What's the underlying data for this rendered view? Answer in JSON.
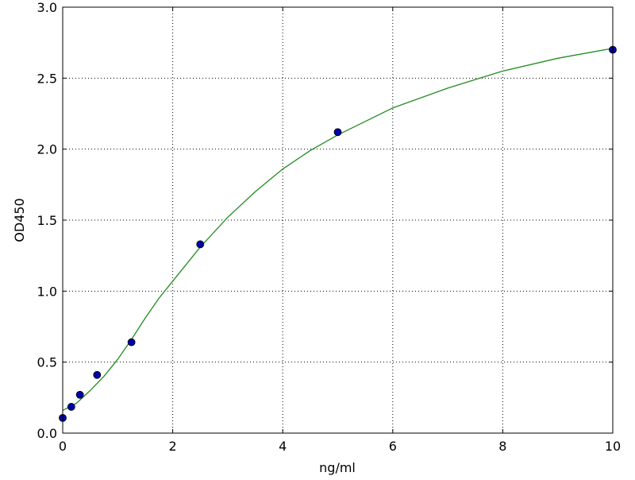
{
  "chart_data": {
    "type": "scatter",
    "title": "",
    "xlabel": "ng/ml",
    "ylabel": "OD450",
    "xlim": [
      0,
      10
    ],
    "ylim": [
      0,
      3.0
    ],
    "xticks": [
      "0",
      "2",
      "4",
      "6",
      "8",
      "10"
    ],
    "yticks": [
      "0.0",
      "0.5",
      "1.0",
      "1.5",
      "2.0",
      "2.5",
      "3.0"
    ],
    "grid": true,
    "series": [
      {
        "kind": "points",
        "color": "#0000aa",
        "x": [
          0,
          0.156,
          0.3125,
          0.625,
          1.25,
          2.5,
          5,
          10
        ],
        "y": [
          0.107,
          0.185,
          0.27,
          0.41,
          0.64,
          1.33,
          2.12,
          2.7
        ]
      },
      {
        "kind": "fit-line",
        "color": "#228b22",
        "x": [
          0,
          0.25,
          0.5,
          0.75,
          1,
          1.25,
          1.5,
          1.75,
          2,
          2.5,
          3,
          3.5,
          4,
          4.5,
          5,
          6,
          7,
          8,
          9,
          10
        ],
        "y": [
          0.16,
          0.21,
          0.3,
          0.4,
          0.52,
          0.66,
          0.81,
          0.95,
          1.07,
          1.31,
          1.52,
          1.7,
          1.86,
          1.99,
          2.1,
          2.29,
          2.43,
          2.55,
          2.64,
          2.71
        ]
      }
    ]
  }
}
